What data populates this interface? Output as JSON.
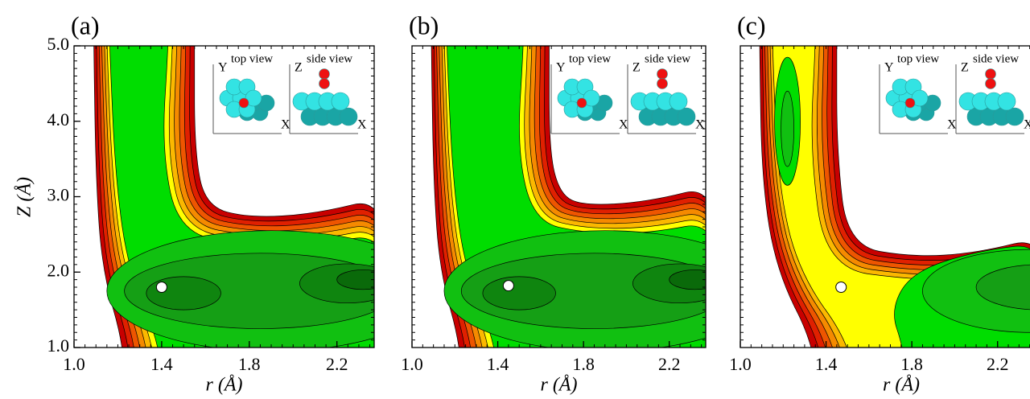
{
  "chart_data": [
    {
      "type": "contour",
      "panel_label": "(a)",
      "xlabel": "r (Å)",
      "ylabel": "Z (Å)",
      "xlim": [
        1.0,
        2.37
      ],
      "ylim": [
        1.0,
        5.0
      ],
      "xticks": [
        {
          "value": 1,
          "label": "1.0"
        },
        1.4,
        1.8,
        2.2
      ],
      "yticks": [
        {
          "value": 1,
          "label": "1.0"
        },
        {
          "value": 2,
          "label": "2.0"
        },
        {
          "value": 3,
          "label": "3.0"
        },
        {
          "value": 4,
          "label": "4.0"
        },
        {
          "value": 5,
          "label": "5.0"
        }
      ],
      "minimum": {
        "x": 1.4,
        "y": 1.8
      },
      "inset": {
        "top_view": "top view",
        "side_view": "side view",
        "top_axes": [
          "Y",
          "X"
        ],
        "side_axes": [
          "Z",
          "X"
        ]
      }
    },
    {
      "type": "contour",
      "panel_label": "(b)",
      "xlabel": "r (Å)",
      "xlim": [
        1.0,
        2.37
      ],
      "ylim": [
        1.0,
        5.0
      ],
      "xticks": [
        {
          "value": 1,
          "label": "1.0"
        },
        1.4,
        1.8,
        2.2
      ],
      "minimum": {
        "x": 1.45,
        "y": 1.82
      },
      "inset": {
        "top_view": "top view",
        "side_view": "side view",
        "top_axes": [
          "Y",
          "X"
        ],
        "side_axes": [
          "Z",
          "X"
        ]
      }
    },
    {
      "type": "contour",
      "panel_label": "(c)",
      "xlabel": "r (Å)",
      "xlim": [
        1.0,
        2.37
      ],
      "ylim": [
        1.0,
        5.0
      ],
      "xticks": [
        {
          "value": 1,
          "label": "1.0"
        },
        1.4,
        1.8,
        2.2
      ],
      "minimum": {
        "x": 1.47,
        "y": 1.8
      },
      "inset": {
        "top_view": "top view",
        "side_view": "side view",
        "top_axes": [
          "Y",
          "X"
        ],
        "side_axes": [
          "Z",
          "X"
        ]
      }
    }
  ]
}
